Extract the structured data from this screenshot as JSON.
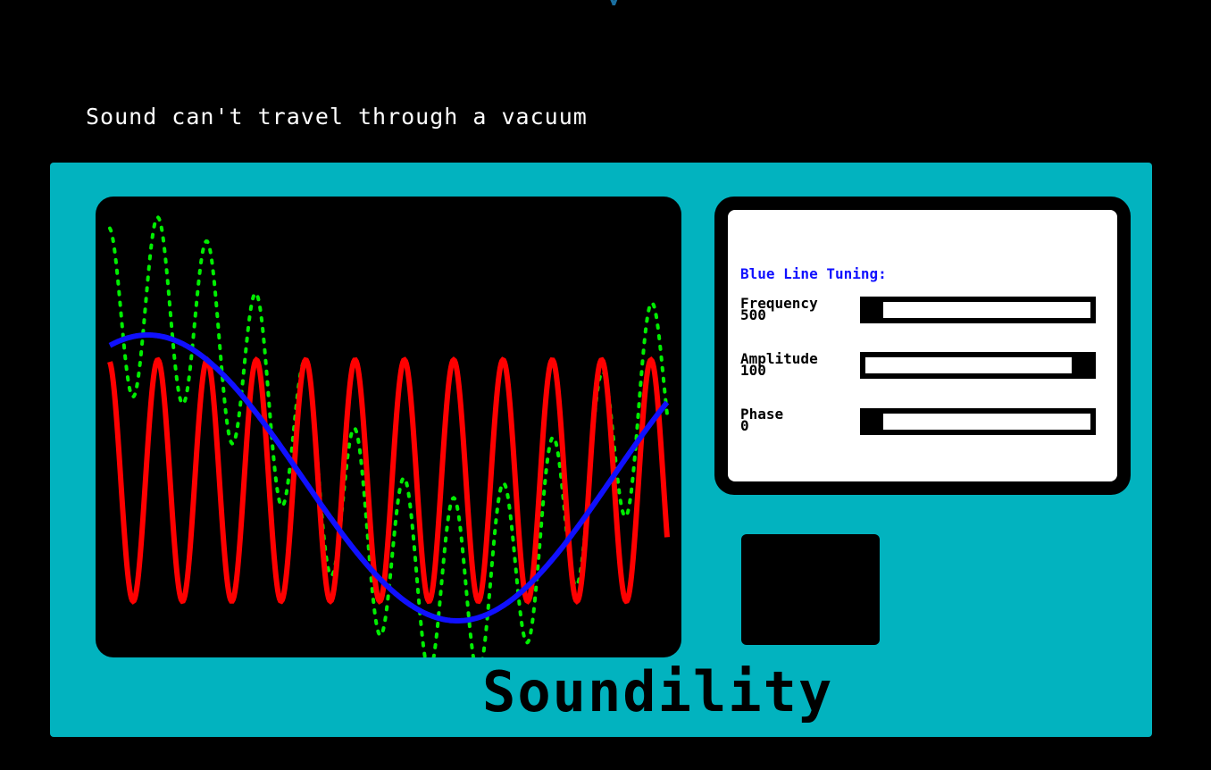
{
  "app": {
    "top_title_fragment": "y",
    "message": "Sound can't travel through a vacuum",
    "brand": "Soundility"
  },
  "tuning_panel": {
    "title": "Blue Line Tuning:",
    "controls": [
      {
        "label": "Frequency",
        "value": "500",
        "fraction": 0.06
      },
      {
        "label": "Amplitude",
        "value": "100",
        "fraction": 0.94
      },
      {
        "label": "Phase",
        "value": "0",
        "fraction": 0.06
      }
    ]
  },
  "waves": {
    "red": {
      "color": "#ff0000",
      "cycles": 11.3,
      "phase_deg": 100
    },
    "blue": {
      "color": "#1010ff",
      "cycles": 0.9,
      "phase_deg": 225
    },
    "green": {
      "color": "#00ee00",
      "style": "dotted"
    }
  },
  "colors": {
    "device": "#02b3bf",
    "background": "#000000",
    "panel": "#ffffff"
  }
}
